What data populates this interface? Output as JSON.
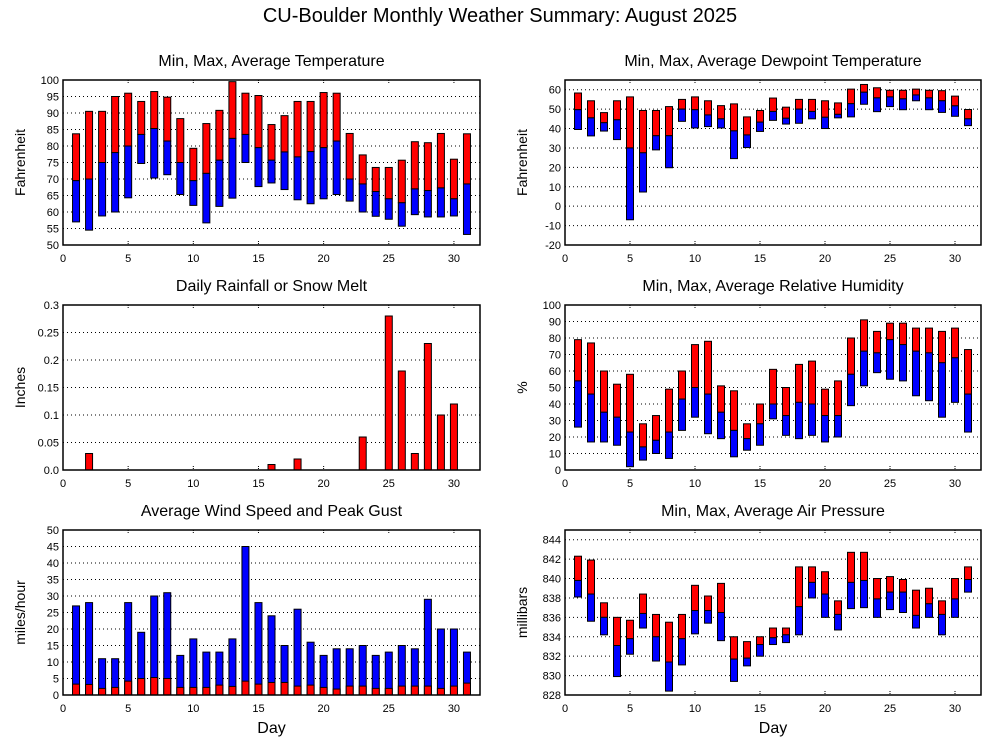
{
  "page_title": "CU-Boulder Monthly Weather Summary: August 2025",
  "colors": {
    "high_segment": "#ff0000",
    "low_segment": "#0000ff",
    "gust": "#0000ff",
    "average_wind": "#ff0000",
    "rain": "#ff0000"
  },
  "chart_data": [
    {
      "id": "temperature",
      "type": "bar",
      "subtype": "floating-range",
      "title": "Min, Max, Average Temperature",
      "xlabel": "",
      "ylabel": "Fahrenheit",
      "xlim": [
        0,
        32
      ],
      "ylim": [
        50,
        100
      ],
      "xticks": [
        0,
        5,
        10,
        15,
        20,
        25,
        30
      ],
      "yticks": [
        50,
        55,
        60,
        65,
        70,
        75,
        80,
        85,
        90,
        95,
        100
      ],
      "grid": true,
      "x": [
        1,
        2,
        3,
        4,
        5,
        6,
        7,
        8,
        9,
        10,
        11,
        12,
        13,
        14,
        15,
        16,
        17,
        18,
        19,
        20,
        21,
        22,
        23,
        24,
        25,
        26,
        27,
        28,
        29,
        30,
        31
      ],
      "series": [
        {
          "name": "Max",
          "values": [
            83.7,
            90.5,
            90.5,
            95,
            96,
            93.5,
            96.5,
            94.8,
            88.3,
            79.3,
            86.8,
            90.8,
            99.5,
            96,
            95.3,
            86.5,
            89.2,
            93.5,
            93.5,
            96.2,
            96,
            83.8,
            77.3,
            73.5,
            73.5,
            75.7,
            81.3,
            81,
            83.8,
            76,
            83.7
          ]
        },
        {
          "name": "Average",
          "values": [
            69.5,
            70,
            75,
            78,
            80,
            83.5,
            85.3,
            81.5,
            75,
            69.5,
            71.7,
            75.7,
            82.3,
            83.5,
            79.5,
            75.7,
            78.2,
            76.7,
            78.3,
            79.5,
            81.5,
            70,
            68.5,
            66.2,
            64,
            62.8,
            67,
            66.5,
            67.3,
            64,
            68.5
          ]
        },
        {
          "name": "Min",
          "values": [
            57,
            54.5,
            58.8,
            60,
            64.3,
            74.7,
            70.3,
            71.3,
            65.3,
            62,
            56.7,
            61.7,
            64.2,
            75,
            67.7,
            68.8,
            66.8,
            63.7,
            62.5,
            64,
            65.3,
            63.3,
            60,
            58.7,
            57.8,
            55.7,
            59.2,
            58.5,
            58.5,
            58.8,
            53.2
          ]
        }
      ]
    },
    {
      "id": "dewpoint",
      "type": "bar",
      "subtype": "floating-range",
      "title": "Min, Max, Average Dewpoint Temperature",
      "xlabel": "",
      "ylabel": "Fahrenheit",
      "xlim": [
        0,
        32
      ],
      "ylim": [
        -20,
        65
      ],
      "xticks": [
        0,
        5,
        10,
        15,
        20,
        25,
        30
      ],
      "yticks": [
        -20,
        -10,
        0,
        10,
        20,
        30,
        40,
        50,
        60
      ],
      "grid": true,
      "x": [
        1,
        2,
        3,
        4,
        5,
        6,
        7,
        8,
        9,
        10,
        11,
        12,
        13,
        14,
        15,
        16,
        17,
        18,
        19,
        20,
        21,
        22,
        23,
        24,
        25,
        26,
        27,
        28,
        29,
        30,
        31
      ],
      "series": [
        {
          "name": "Max",
          "values": [
            58.3,
            54.3,
            48.2,
            54.3,
            56.3,
            49.3,
            49.3,
            51.3,
            55,
            56.3,
            54.3,
            51.8,
            52.7,
            46,
            49.3,
            55.7,
            51,
            55,
            55,
            54.3,
            53.2,
            60.3,
            62.7,
            61,
            59.7,
            59.7,
            60.3,
            59.7,
            59.5,
            56.7,
            49.8
          ]
        },
        {
          "name": "Average",
          "values": [
            49.7,
            45.5,
            43,
            44.5,
            30,
            27.5,
            36.3,
            36.3,
            50,
            49.7,
            47,
            45,
            38.8,
            36.7,
            43.3,
            48.8,
            45.3,
            50,
            48.8,
            45.8,
            47.3,
            52.8,
            58.7,
            55.8,
            56.3,
            55.3,
            57.3,
            55.8,
            54.3,
            51.7,
            45
          ]
        },
        {
          "name": "Min",
          "values": [
            39.5,
            36.2,
            38.7,
            34.3,
            -7,
            7.3,
            29,
            19.8,
            43.7,
            40.3,
            41,
            40.3,
            24.5,
            30.2,
            38.5,
            44.2,
            42.3,
            42.7,
            45,
            40,
            45.5,
            46,
            52.5,
            48.7,
            51.3,
            49.7,
            54.3,
            49.7,
            48.3,
            46.3,
            41.5
          ]
        }
      ]
    },
    {
      "id": "rainfall",
      "type": "bar",
      "title": "Daily Rainfall or Snow Melt",
      "xlabel": "",
      "ylabel": "Inches",
      "xlim": [
        0,
        32
      ],
      "ylim": [
        0,
        0.3
      ],
      "xticks": [
        0,
        5,
        10,
        15,
        20,
        25,
        30
      ],
      "yticks": [
        0.0,
        0.05,
        0.1,
        0.15,
        0.2,
        0.25,
        0.3
      ],
      "ytick_labels": [
        "0.0",
        "0.05",
        "0.1",
        "0.15",
        "0.2",
        "0.25",
        "0.3"
      ],
      "grid": true,
      "categories": [
        1,
        2,
        3,
        4,
        5,
        6,
        7,
        8,
        9,
        10,
        11,
        12,
        13,
        14,
        15,
        16,
        17,
        18,
        19,
        20,
        21,
        22,
        23,
        24,
        25,
        26,
        27,
        28,
        29,
        30,
        31
      ],
      "values": [
        0,
        0.03,
        0,
        0,
        0,
        0,
        0,
        0,
        0,
        0,
        0,
        0,
        0,
        0,
        0,
        0.01,
        0,
        0.02,
        0,
        0,
        0,
        0,
        0.06,
        0,
        0.28,
        0.18,
        0.03,
        0.23,
        0.1,
        0.12,
        0
      ]
    },
    {
      "id": "humidity",
      "type": "bar",
      "subtype": "floating-range",
      "title": "Min, Max, Average Relative Humidity",
      "xlabel": "",
      "ylabel": "%",
      "xlim": [
        0,
        32
      ],
      "ylim": [
        0,
        100
      ],
      "xticks": [
        0,
        5,
        10,
        15,
        20,
        25,
        30
      ],
      "yticks": [
        0,
        10,
        20,
        30,
        40,
        50,
        60,
        70,
        80,
        90,
        100
      ],
      "grid": true,
      "x": [
        1,
        2,
        3,
        4,
        5,
        6,
        7,
        8,
        9,
        10,
        11,
        12,
        13,
        14,
        15,
        16,
        17,
        18,
        19,
        20,
        21,
        22,
        23,
        24,
        25,
        26,
        27,
        28,
        29,
        30,
        31
      ],
      "series": [
        {
          "name": "Max",
          "values": [
            79,
            77,
            60,
            52,
            58,
            28,
            33,
            49,
            60,
            76,
            78,
            51,
            48,
            28,
            40,
            61,
            50,
            64,
            66,
            49,
            54,
            80,
            91,
            84,
            89,
            89,
            86,
            86,
            84,
            86,
            73
          ]
        },
        {
          "name": "Average",
          "values": [
            54,
            46,
            35,
            32,
            23,
            14,
            18,
            23,
            43,
            50,
            46,
            35,
            24,
            19,
            28,
            40,
            33,
            41,
            40,
            33,
            33,
            58,
            72,
            71,
            79,
            76,
            72,
            71,
            65,
            68,
            46
          ]
        },
        {
          "name": "Min",
          "values": [
            26,
            17,
            17,
            15,
            2,
            6,
            10,
            7,
            24,
            32,
            22,
            19,
            8,
            12,
            15,
            31,
            21,
            19,
            21,
            17,
            20,
            39,
            51,
            59,
            55,
            54,
            45,
            42,
            32,
            41,
            23
          ]
        }
      ]
    },
    {
      "id": "wind",
      "type": "bar",
      "subtype": "overlaid",
      "title": "Average Wind Speed and Peak Gust",
      "xlabel": "Day",
      "ylabel": "miles/hour",
      "xlim": [
        0,
        32
      ],
      "ylim": [
        0,
        50
      ],
      "xticks": [
        0,
        5,
        10,
        15,
        20,
        25,
        30
      ],
      "yticks": [
        0,
        5,
        10,
        15,
        20,
        25,
        30,
        35,
        40,
        45,
        50
      ],
      "grid": true,
      "x": [
        1,
        2,
        3,
        4,
        5,
        6,
        7,
        8,
        9,
        10,
        11,
        12,
        13,
        14,
        15,
        16,
        17,
        18,
        19,
        20,
        21,
        22,
        23,
        24,
        25,
        26,
        27,
        28,
        29,
        30,
        31
      ],
      "series": [
        {
          "name": "Peak Gust",
          "values": [
            27,
            28,
            11,
            11,
            28,
            19,
            30,
            31,
            12,
            17,
            13,
            13,
            17,
            45,
            28,
            24,
            15,
            26,
            16,
            12,
            14,
            14,
            15,
            12,
            13,
            15,
            14,
            29,
            20,
            20,
            13
          ]
        },
        {
          "name": "Average Wind Speed",
          "values": [
            3.3,
            3.2,
            2,
            2.3,
            4.2,
            5,
            5.3,
            5,
            2.3,
            2.3,
            2.3,
            3,
            2.6,
            4.2,
            3.3,
            3.8,
            3.8,
            2.7,
            3,
            2.3,
            1.8,
            2.7,
            2.7,
            2,
            2,
            2.7,
            2.7,
            2.7,
            2,
            2.7,
            3.6
          ]
        }
      ]
    },
    {
      "id": "pressure",
      "type": "bar",
      "subtype": "floating-range",
      "title": "Min, Max, Average Air Pressure",
      "xlabel": "Day",
      "ylabel": "millibars",
      "xlim": [
        0,
        32
      ],
      "ylim": [
        828,
        845
      ],
      "xticks": [
        0,
        5,
        10,
        15,
        20,
        25,
        30
      ],
      "yticks": [
        828,
        830,
        832,
        834,
        836,
        838,
        840,
        842,
        844
      ],
      "grid": true,
      "x": [
        1,
        2,
        3,
        4,
        5,
        6,
        7,
        8,
        9,
        10,
        11,
        12,
        13,
        14,
        15,
        16,
        17,
        18,
        19,
        20,
        21,
        22,
        23,
        24,
        25,
        26,
        27,
        28,
        29,
        30,
        31
      ],
      "series": [
        {
          "name": "Max",
          "values": [
            842.3,
            841.9,
            837.5,
            836,
            835.7,
            838.4,
            836.3,
            835.5,
            836.3,
            839.3,
            838.2,
            839.5,
            834,
            833.5,
            834,
            834.9,
            834.9,
            841.2,
            841.2,
            840.7,
            837.7,
            842.7,
            842.7,
            840,
            840.2,
            839.9,
            838.8,
            839,
            837.7,
            840,
            841.2
          ]
        },
        {
          "name": "Average",
          "values": [
            839.8,
            838.4,
            836,
            833.1,
            833.8,
            836.4,
            834,
            831.4,
            833.8,
            836.7,
            836.7,
            836.5,
            831.7,
            831.8,
            833.2,
            833.9,
            834.2,
            837.1,
            839.6,
            838.4,
            836.3,
            839.6,
            839.8,
            837.9,
            838.6,
            838.6,
            836.2,
            837.4,
            836.3,
            837.9,
            839.9
          ]
        },
        {
          "name": "Min",
          "values": [
            838.1,
            835.6,
            834.2,
            829.9,
            832.2,
            834.9,
            831.5,
            828.4,
            831.1,
            834.3,
            835.4,
            833.6,
            829.4,
            831,
            832,
            833.2,
            833.4,
            834.2,
            838,
            836,
            834.7,
            836.9,
            837,
            836,
            836.8,
            836.5,
            834.9,
            836,
            834.2,
            836,
            838.6
          ]
        }
      ]
    }
  ]
}
